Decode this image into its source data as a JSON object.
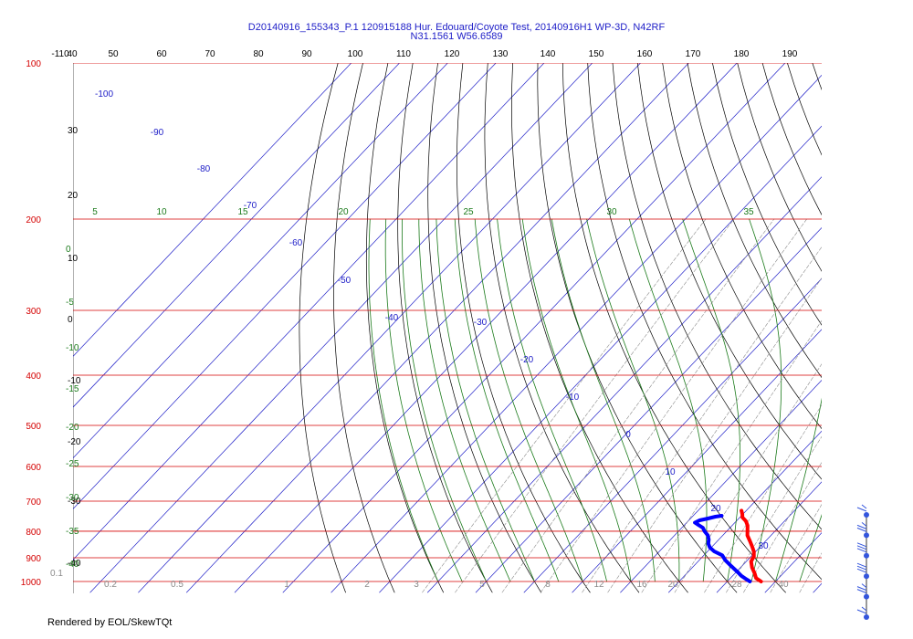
{
  "window": {
    "title_line1": "D20140916_155343_P.1 120915188 Hur. Edouard/Coyote Test, 20140916H1 WP-3D, N42RF",
    "title_line2": "N31.1561 W56.6589",
    "footer": "Rendered by EOL/SkewTQt"
  },
  "colors": {
    "isobar": "#d40000",
    "isotherm": "#2020c8",
    "dry_adiabat": "#000000",
    "moist_adiabat": "#1a7a1a",
    "mixing_ratio": "#8a8a8a",
    "temperature_trace": "#ff0000",
    "dewpoint_trace": "#0000ff",
    "wind_barb": "#3355dd"
  },
  "chart_data": {
    "type": "line",
    "title": "D20140916_155343_P.1 120915188 Hur. Edouard/Coyote Test, 20140916H1 WP-3D, N42RF",
    "subtitle": "N31.1561 W56.6589",
    "pressure_levels": [
      "100",
      "200",
      "300",
      "400",
      "500",
      "600",
      "700",
      "800",
      "900",
      "1000"
    ],
    "top_temperature_labels": [
      "-110",
      "40",
      "50",
      "60",
      "70",
      "80",
      "90",
      "100",
      "110",
      "120",
      "130",
      "140",
      "150",
      "160",
      "170",
      "180",
      "190"
    ],
    "isotherm_labels": [
      "-100",
      "-90",
      "-80",
      "-70",
      "-60",
      "-50",
      "-40",
      "-30",
      "-20",
      "-10",
      "0",
      "10",
      "20",
      "30"
    ],
    "dry_adiabat_left_labels": [
      "30",
      "20",
      "10",
      "0",
      "-10",
      "-20",
      "-30",
      "-40"
    ],
    "moist_adiabat_labels": [
      "5",
      "10",
      "15",
      "20",
      "25",
      "30",
      "35"
    ],
    "moist_left_labels": [
      "0",
      "-5",
      "-10",
      "-15",
      "-20",
      "-25",
      "-30",
      "-35",
      "-40"
    ],
    "mixing_ratio_labels": [
      "0.1",
      "0.2",
      "0.5",
      "1",
      "2",
      "3",
      "5",
      "8",
      "12",
      "16",
      "20",
      "28",
      "40"
    ],
    "temperature_profile": [
      {
        "p": 1000,
        "t": 27.0
      },
      {
        "p": 985,
        "t": 25.3
      },
      {
        "p": 965,
        "t": 24.1
      },
      {
        "p": 940,
        "t": 22.4
      },
      {
        "p": 915,
        "t": 21.0
      },
      {
        "p": 895,
        "t": 20.6
      },
      {
        "p": 875,
        "t": 19.6
      },
      {
        "p": 855,
        "t": 18.2
      },
      {
        "p": 835,
        "t": 16.7
      },
      {
        "p": 815,
        "t": 15.1
      },
      {
        "p": 800,
        "t": 14.3
      },
      {
        "p": 780,
        "t": 13.2
      },
      {
        "p": 765,
        "t": 12.0
      },
      {
        "p": 752,
        "t": 10.5
      },
      {
        "p": 742,
        "t": 9.9
      },
      {
        "p": 730,
        "t": 9.0
      }
    ],
    "dewpoint_profile": [
      {
        "p": 1000,
        "td": 24.7
      },
      {
        "p": 990,
        "td": 23.5
      },
      {
        "p": 975,
        "td": 21.8
      },
      {
        "p": 955,
        "td": 19.9
      },
      {
        "p": 935,
        "td": 17.9
      },
      {
        "p": 910,
        "td": 15.4
      },
      {
        "p": 890,
        "td": 13.8
      },
      {
        "p": 875,
        "td": 11.4
      },
      {
        "p": 860,
        "td": 9.7
      },
      {
        "p": 845,
        "td": 8.6
      },
      {
        "p": 830,
        "td": 7.9
      },
      {
        "p": 815,
        "td": 6.9
      },
      {
        "p": 800,
        "td": 5.4
      },
      {
        "p": 788,
        "td": 4.4
      },
      {
        "p": 778,
        "td": 2.9
      },
      {
        "p": 770,
        "td": 1.7
      },
      {
        "p": 762,
        "td": 2.2
      },
      {
        "p": 756,
        "td": 3.6
      },
      {
        "p": 750,
        "td": 4.8
      },
      {
        "p": 747,
        "td": 5.9
      }
    ],
    "wind_barbs": [
      {
        "p": 1000,
        "dir": 200,
        "speed": 15
      },
      {
        "p": 950,
        "dir": 210,
        "speed": 25
      },
      {
        "p": 900,
        "dir": 210,
        "speed": 30
      },
      {
        "p": 850,
        "dir": 220,
        "speed": 30
      },
      {
        "p": 800,
        "dir": 230,
        "speed": 25
      },
      {
        "p": 750,
        "dir": 230,
        "speed": 15
      }
    ],
    "grid": true
  }
}
